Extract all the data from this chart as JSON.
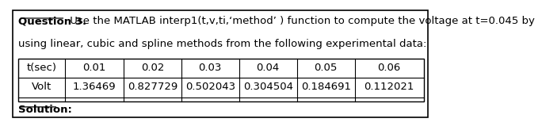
{
  "title_bold": "Question 3.",
  "title_normal": " Use the MATLAB interp1(t,v,ti,‘method’ ) function to compute the voltage at t=0.045 by",
  "title_line2": "using linear, cubic and spline methods from the following experimental data:",
  "col_headers": [
    "t(sec)",
    "0.01",
    "0.02",
    "0.03",
    "0.04",
    "0.05",
    "0.06"
  ],
  "row2_values": [
    "1.36469",
    "0.827729",
    "0.502043",
    "0.304504",
    "0.184691",
    "0.112021"
  ],
  "solution_label": "Solution:",
  "font_color": "#000000",
  "border_color": "#000000",
  "background_color": "#ffffff",
  "font_size": 9.5
}
